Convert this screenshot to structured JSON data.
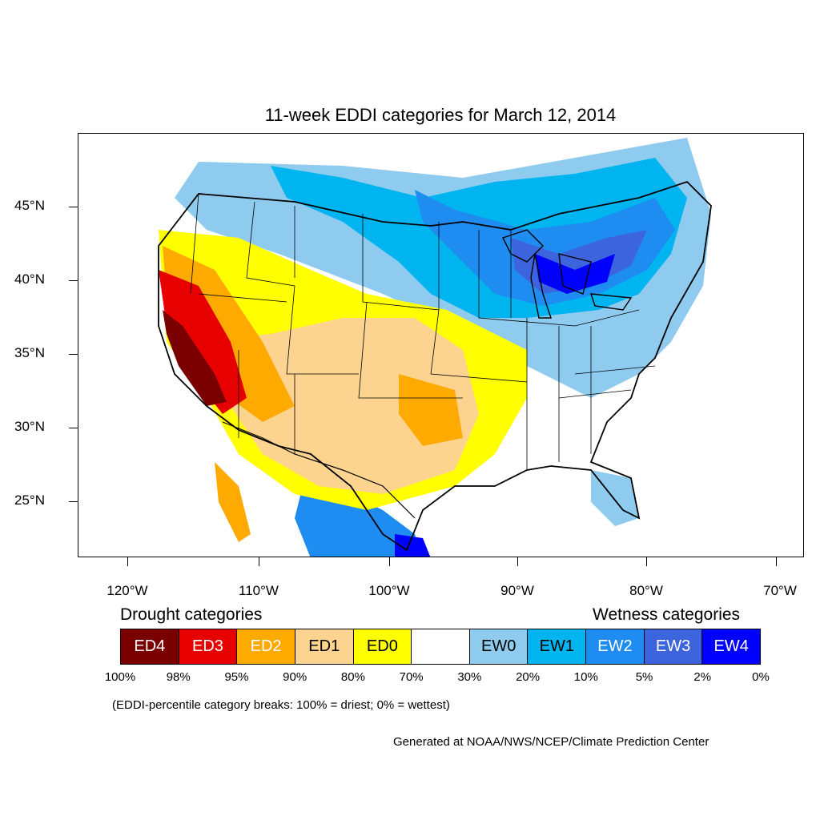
{
  "title": "11-week EDDI categories for March 12, 2014",
  "axes": {
    "lat_labels": [
      "45°N",
      "40°N",
      "35°N",
      "30°N",
      "25°N"
    ],
    "lon_labels": [
      "120°W",
      "110°W",
      "100°W",
      "90°W",
      "80°W",
      "70°W"
    ]
  },
  "legend": {
    "drought_heading": "Drought categories",
    "wetness_heading": "Wetness categories",
    "categories": [
      {
        "label": "ED4",
        "color": "#7a0000",
        "text_color": "#ffffff"
      },
      {
        "label": "ED3",
        "color": "#e60000",
        "text_color": "#ffffff"
      },
      {
        "label": "ED2",
        "color": "#ffaa00",
        "text_color": "#ffffff"
      },
      {
        "label": "ED1",
        "color": "#fcd38f",
        "text_color": "#000000"
      },
      {
        "label": "ED0",
        "color": "#ffff00",
        "text_color": "#000000"
      },
      {
        "label": "",
        "color": "#ffffff",
        "text_color": "#000000"
      },
      {
        "label": "EW0",
        "color": "#8ecbef",
        "text_color": "#000000"
      },
      {
        "label": "EW1",
        "color": "#00b4f0",
        "text_color": "#000000"
      },
      {
        "label": "EW2",
        "color": "#1e8cf0",
        "text_color": "#ffffff"
      },
      {
        "label": "EW3",
        "color": "#3c64dc",
        "text_color": "#ffffff"
      },
      {
        "label": "EW4",
        "color": "#0000ff",
        "text_color": "#ffffff"
      }
    ],
    "percentiles": [
      "100%",
      "98%",
      "95%",
      "90%",
      "80%",
      "70%",
      "30%",
      "20%",
      "10%",
      "5%",
      "2%",
      "0%"
    ]
  },
  "note": "(EDDI-percentile category breaks: 100% = driest; 0% = wettest)",
  "credit": "Generated at NOAA/NWS/NCEP/Climate Prediction Center"
}
